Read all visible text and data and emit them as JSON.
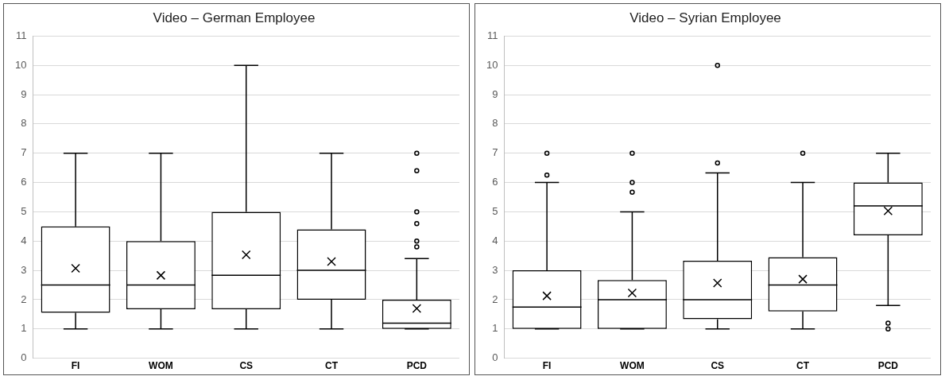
{
  "chart_data": [
    {
      "type": "box",
      "title": "Video – German Employee",
      "categories": [
        "FI",
        "WOM",
        "CS",
        "CT",
        "PCD"
      ],
      "color": "#000000",
      "ylim": [
        0,
        11
      ],
      "yticks": [
        0,
        1,
        2,
        3,
        4,
        5,
        6,
        7,
        8,
        9,
        10,
        11
      ],
      "grid": "y",
      "legend": false,
      "boxes": [
        {
          "low": 1,
          "q1": 1.55,
          "median": 2.5,
          "q3": 4.5,
          "high": 7,
          "mean": 3.07
        },
        {
          "low": 1,
          "q1": 1.67,
          "median": 2.5,
          "q3": 4,
          "high": 7,
          "mean": 2.83
        },
        {
          "low": 1,
          "q1": 1.67,
          "median": 2.83,
          "q3": 5,
          "high": 10,
          "mean": 3.53
        },
        {
          "low": 1,
          "q1": 2,
          "median": 3,
          "q3": 4.4,
          "high": 7,
          "mean": 3.3
        },
        {
          "low": 1,
          "q1": 1,
          "median": 1.2,
          "q3": 2,
          "high": 3.4,
          "mean": 1.7,
          "outliers": [
            3.8,
            4,
            4.6,
            5,
            6.4,
            7
          ]
        }
      ]
    },
    {
      "type": "box",
      "title": "Video – Syrian Employee",
      "categories": [
        "FI",
        "WOM",
        "CS",
        "CT",
        "PCD"
      ],
      "color": "#000000",
      "ylim": [
        0,
        11
      ],
      "yticks": [
        0,
        1,
        2,
        3,
        4,
        5,
        6,
        7,
        8,
        9,
        10,
        11
      ],
      "grid": "y",
      "legend": false,
      "boxes": [
        {
          "low": 1,
          "q1": 1,
          "median": 1.75,
          "q3": 3,
          "high": 6,
          "mean": 2.13,
          "outliers": [
            6.25,
            7
          ]
        },
        {
          "low": 1,
          "q1": 1,
          "median": 2,
          "q3": 2.67,
          "high": 5,
          "mean": 2.23,
          "outliers": [
            5.67,
            6,
            7
          ]
        },
        {
          "low": 1,
          "q1": 1.33,
          "median": 2,
          "q3": 3.33,
          "high": 6.33,
          "mean": 2.57,
          "outliers": [
            6.67,
            10
          ]
        },
        {
          "low": 1,
          "q1": 1.6,
          "median": 2.5,
          "q3": 3.45,
          "high": 6,
          "mean": 2.7,
          "outliers": [
            7
          ]
        },
        {
          "low": 1.8,
          "q1": 4.2,
          "median": 5.2,
          "q3": 6,
          "high": 7,
          "mean": 5.03,
          "outliers": [
            1,
            1.2
          ]
        }
      ]
    }
  ]
}
